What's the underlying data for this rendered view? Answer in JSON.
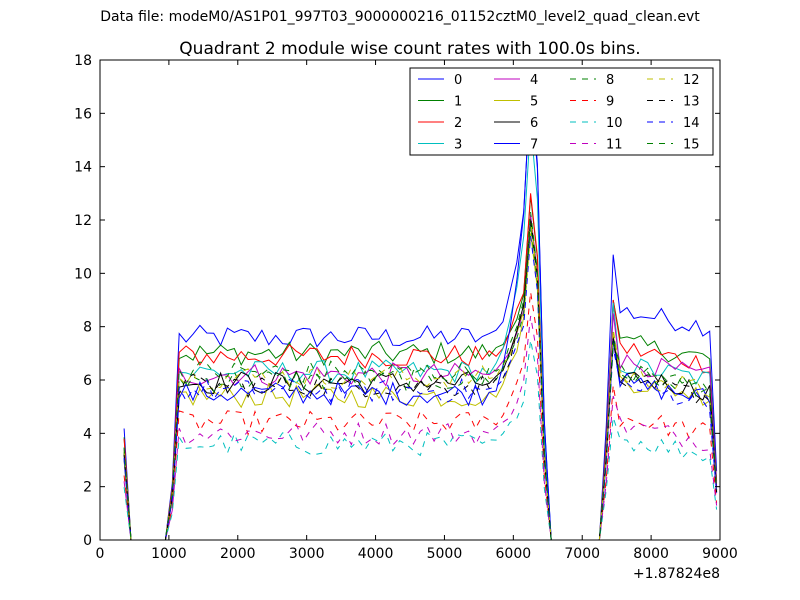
{
  "suptitle": "Data file: modeM0/AS1P01_997T03_9000000216_01152cztM0_level2_quad_clean.evt",
  "chart_data": {
    "type": "line",
    "title": "Quadrant 2 module wise count rates with 100.0s bins.",
    "xlabel": "",
    "ylabel": "",
    "x_offset_label": "+1.87824e8",
    "xlim": [
      0,
      9000
    ],
    "ylim": [
      0,
      18
    ],
    "xticks": [
      0,
      1000,
      2000,
      3000,
      4000,
      5000,
      6000,
      7000,
      8000,
      9000
    ],
    "yticks": [
      0,
      2,
      4,
      6,
      8,
      10,
      12,
      14,
      16,
      18
    ],
    "grid": false,
    "legend_position": "top-right",
    "legend_columns": 4,
    "series": [
      {
        "name": "0",
        "color": "#0000ff",
        "dash": "solid",
        "level": 7.6,
        "peak": 17.0,
        "post_peak": 10.7,
        "post_level": 8.6
      },
      {
        "name": "1",
        "color": "#008000",
        "dash": "solid",
        "level": 7.0,
        "peak": 12.9,
        "post_peak": 9.0,
        "post_level": 7.4
      },
      {
        "name": "2",
        "color": "#ff0000",
        "dash": "solid",
        "level": 6.9,
        "peak": 13.0,
        "post_peak": 9.0,
        "post_level": 7.2
      },
      {
        "name": "3",
        "color": "#00bfbf",
        "dash": "solid",
        "level": 6.3,
        "peak": 15.6,
        "post_peak": 8.9,
        "post_level": 6.6
      },
      {
        "name": "4",
        "color": "#bf00bf",
        "dash": "solid",
        "level": 6.2,
        "peak": 12.2,
        "post_peak": 8.5,
        "post_level": 6.7
      },
      {
        "name": "5",
        "color": "#bfbf00",
        "dash": "solid",
        "level": 5.4,
        "peak": 11.5,
        "post_peak": 7.7,
        "post_level": 6.0
      },
      {
        "name": "6",
        "color": "#000000",
        "dash": "solid",
        "level": 5.9,
        "peak": 12.0,
        "post_peak": 7.6,
        "post_level": 6.2
      },
      {
        "name": "7",
        "color": "#0000ff",
        "dash": "solid",
        "level": 5.5,
        "peak": 17.2,
        "post_peak": 7.5,
        "post_level": 5.9
      },
      {
        "name": "8",
        "color": "#008000",
        "dash": "dashed",
        "level": 6.0,
        "peak": 11.8,
        "post_peak": 7.8,
        "post_level": 6.3
      },
      {
        "name": "9",
        "color": "#ff0000",
        "dash": "dashed",
        "level": 4.4,
        "peak": 9.3,
        "post_peak": 5.8,
        "post_level": 4.6
      },
      {
        "name": "10",
        "color": "#00bfbf",
        "dash": "dashed",
        "level": 3.6,
        "peak": 7.5,
        "post_peak": 4.6,
        "post_level": 3.8
      },
      {
        "name": "11",
        "color": "#bf00bf",
        "dash": "dashed",
        "level": 4.0,
        "peak": 8.4,
        "post_peak": 5.4,
        "post_level": 4.3
      },
      {
        "name": "12",
        "color": "#bfbf00",
        "dash": "dashed",
        "level": 6.1,
        "peak": 12.0,
        "post_peak": 7.9,
        "post_level": 6.2
      },
      {
        "name": "13",
        "color": "#000000",
        "dash": "dashed",
        "level": 5.8,
        "peak": 12.1,
        "post_peak": 7.5,
        "post_level": 6.0
      },
      {
        "name": "14",
        "color": "#0000ff",
        "dash": "dashed",
        "level": 5.6,
        "peak": 11.4,
        "post_peak": 7.2,
        "post_level": 5.8
      },
      {
        "name": "15",
        "color": "#008000",
        "dash": "dashed",
        "level": 6.3,
        "peak": 12.3,
        "post_peak": 7.4,
        "post_level": 6.3
      }
    ]
  }
}
